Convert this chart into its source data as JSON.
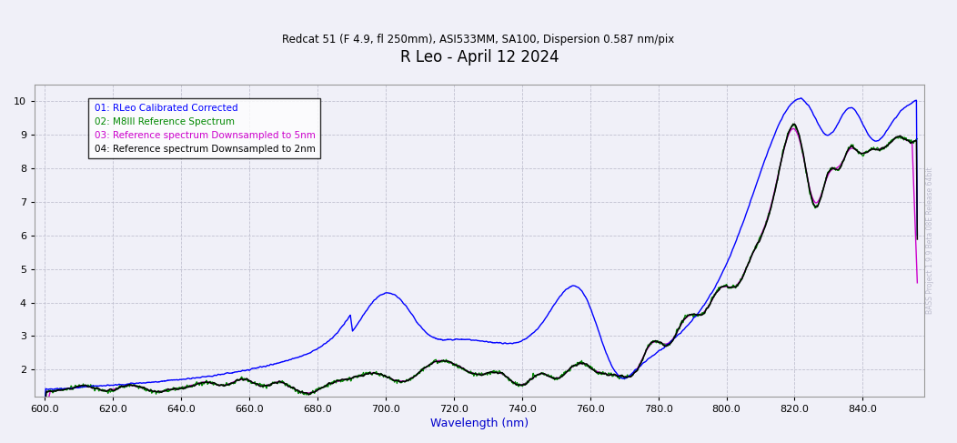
{
  "title": "R Leo - April 12 2024",
  "subtitle": "Redcat 51 (F 4.9, fl 250mm), ASI533MM, SA100, Dispersion 0.587 nm/pix",
  "xlabel": "Wavelength (nm)",
  "xlim": [
    597,
    858
  ],
  "ylim": [
    1.2,
    10.5
  ],
  "xticks": [
    600.0,
    620.0,
    640.0,
    660.0,
    680.0,
    700.0,
    720.0,
    740.0,
    760.0,
    780.0,
    800.0,
    820.0,
    840.0
  ],
  "yticks": [
    2,
    3,
    4,
    5,
    6,
    7,
    8,
    9,
    10
  ],
  "title_color": "#000000",
  "subtitle_color": "#000000",
  "xlabel_color": "#0000cc",
  "background": "#f0f0f8",
  "grid_color": "#bbbbcc",
  "legend_labels": [
    "01: RLeo Calibrated Corrected",
    "02: M8III Reference Spectrum",
    "03: Reference spectrum Downsampled to 5nm",
    "04: Reference spectrum Downsampled to 2nm"
  ],
  "legend_colors": [
    "#0000ff",
    "#008800",
    "#cc00cc",
    "#000000"
  ],
  "watermark": "BASS Project 1.9.9 Beta 08E Release 64bit",
  "watermark_color": "#bbbbcc"
}
